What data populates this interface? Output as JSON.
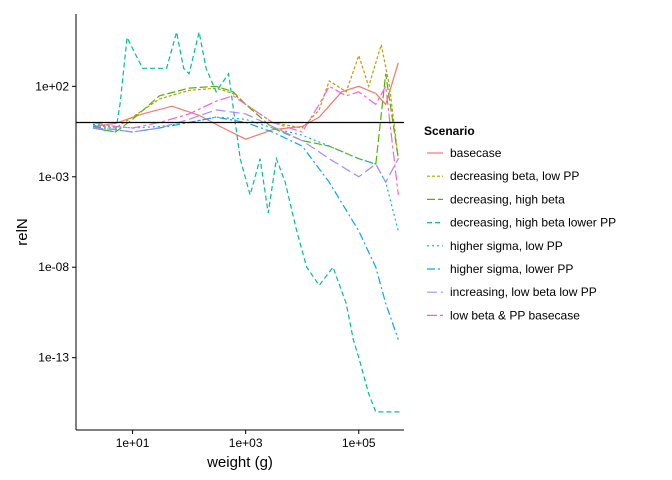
{
  "chart_data": {
    "type": "line",
    "xlabel": "weight (g)",
    "ylabel": "relN",
    "x_scale": "log10",
    "y_scale": "log10",
    "xlim": [
      1,
      631000
    ],
    "ylim": [
      1e-17,
      1000000.0
    ],
    "x_ticks": [
      10,
      1000,
      100000
    ],
    "x_tick_labels": [
      "1e+01",
      "1e+03",
      "1e+05"
    ],
    "y_ticks": [
      100,
      0.001,
      1e-08,
      1e-13
    ],
    "y_tick_labels": [
      "1e+02",
      "1e-03",
      "1e-08",
      "1e-13"
    ],
    "reference_line": {
      "y": 1,
      "color": "#000000"
    },
    "grid": false,
    "legend": {
      "title": "Scenario",
      "position": "right"
    },
    "series": [
      {
        "name": "basecase",
        "color": "#F8766D",
        "dash": "solid",
        "x": [
          2,
          5,
          15,
          50,
          150,
          400,
          1000,
          3000,
          10000,
          20000,
          50000,
          100000,
          200000,
          300000,
          500000
        ],
        "y": [
          0.6,
          0.9,
          3,
          8,
          2.5,
          0.5,
          0.12,
          0.4,
          0.6,
          2,
          50,
          100,
          40,
          10,
          2000
        ]
      },
      {
        "name": "decreasing beta, low PP",
        "color": "#C49A00",
        "dash": "3,2",
        "x": [
          2,
          5,
          10,
          30,
          100,
          300,
          600,
          1000,
          3000,
          10000,
          20000,
          30000,
          60000,
          100000,
          150000,
          250000,
          350000,
          500000
        ],
        "y": [
          0.7,
          0.5,
          2,
          20,
          60,
          80,
          40,
          10,
          1,
          0.5,
          5,
          200,
          50,
          5000,
          100,
          20000,
          100,
          0.01
        ]
      },
      {
        "name": "decreasing, high beta",
        "color": "#53B400",
        "dash": "8,3",
        "x": [
          2,
          5,
          10,
          30,
          100,
          300,
          600,
          1000,
          3000,
          10000,
          30000,
          100000,
          200000,
          300000,
          500000
        ],
        "y": [
          0.5,
          0.3,
          1.5,
          30,
          80,
          100,
          50,
          10,
          0.5,
          0.1,
          0.05,
          0.01,
          0.005,
          500,
          0.01
        ]
      },
      {
        "name": "decreasing, high beta lower PP",
        "color": "#00C094",
        "dash": "5,3",
        "x": [
          2,
          5,
          6,
          8,
          15,
          40,
          60,
          80,
          100,
          150,
          200,
          300,
          500,
          800,
          1200,
          1800,
          2500,
          3500,
          5000,
          8000,
          12000,
          20000,
          35000,
          60000,
          80000,
          100000,
          150000,
          200000,
          300000,
          550000
        ],
        "y": [
          0.5,
          0.3,
          10,
          50000,
          1000,
          1000,
          100000,
          1000,
          500,
          100000,
          1000,
          50,
          500,
          0.01,
          0.0001,
          0.01,
          1e-05,
          0.01,
          0.0005,
          1e-06,
          1e-08,
          1e-09,
          1e-08,
          1e-10,
          1e-12,
          1e-13,
          1e-15,
          1e-16,
          1e-16,
          1e-16
        ]
      },
      {
        "name": "higher sigma, low PP",
        "color": "#00B6EB",
        "dash": "2,3",
        "x": [
          2,
          5,
          10,
          30,
          100,
          300,
          1000,
          3000,
          10000,
          30000,
          100000,
          200000,
          300000,
          500000
        ],
        "y": [
          0.8,
          0.6,
          0.5,
          0.6,
          1,
          2,
          1.5,
          0.5,
          0.2,
          0.05,
          0.01,
          0.005,
          0.0005,
          1e-06
        ]
      },
      {
        "name": "higher sigma, lower PP",
        "color": "#06A4FF",
        "dash": "8,3,2,3",
        "x": [
          2,
          5,
          10,
          30,
          100,
          300,
          1000,
          3000,
          10000,
          30000,
          100000,
          200000,
          300000,
          500000
        ],
        "y": [
          0.6,
          0.4,
          0.3,
          0.5,
          1,
          2,
          1,
          0.3,
          0.05,
          0.0005,
          1e-06,
          1e-08,
          1e-10,
          1e-12
        ]
      },
      {
        "name": "increasing, low beta low PP",
        "color": "#A58AFF",
        "dash": "10,4",
        "x": [
          2,
          5,
          10,
          30,
          100,
          300,
          1000,
          3000,
          10000,
          30000,
          100000,
          200000,
          300000,
          500000
        ],
        "y": [
          0.5,
          0.4,
          0.3,
          0.5,
          1.5,
          5,
          3,
          0.6,
          0.1,
          0.01,
          0.001,
          0.005,
          0.0005,
          0.01
        ]
      },
      {
        "name": "low beta & PP basecase",
        "color": "#FB61D7",
        "dash": "10,3,3,3",
        "x": [
          2,
          5,
          10,
          30,
          100,
          300,
          600,
          1000,
          3000,
          10000,
          20000,
          30000,
          60000,
          100000,
          200000,
          300000,
          500000
        ],
        "y": [
          1,
          0.6,
          0.5,
          1,
          3,
          15,
          30,
          10,
          1,
          0.3,
          10,
          100,
          30,
          50,
          10,
          100,
          0.0001
        ]
      }
    ]
  }
}
